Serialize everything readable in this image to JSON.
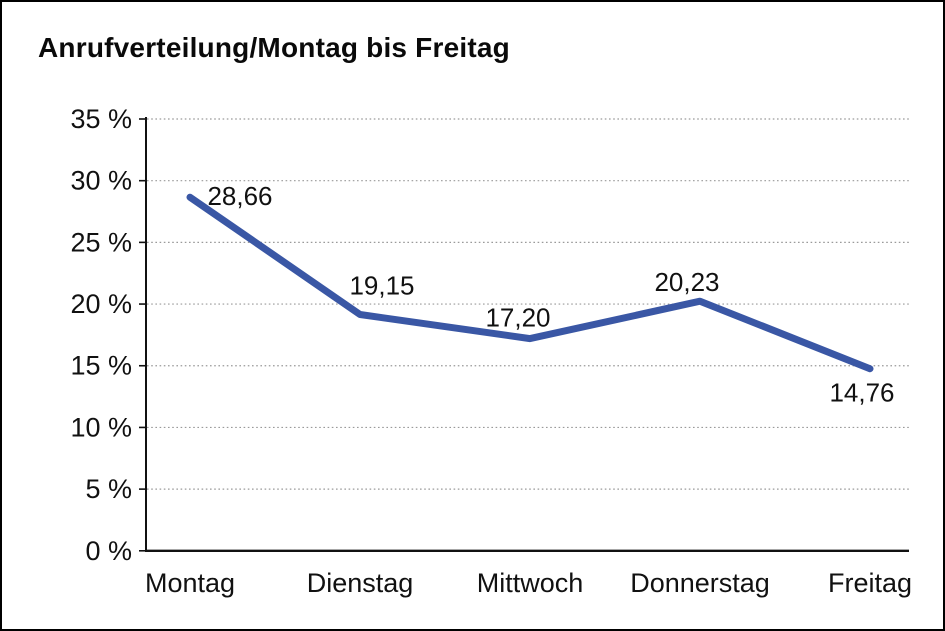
{
  "chart_data": {
    "type": "line",
    "title": "Anrufverteilung/Montag bis Freitag",
    "categories": [
      "Montag",
      "Dienstag",
      "Mittwoch",
      "Donnerstag",
      "Freitag"
    ],
    "series": [
      {
        "name": "Anrufverteilung",
        "values": [
          28.66,
          19.15,
          17.2,
          20.23,
          14.76
        ],
        "value_labels": [
          "28,66",
          "19,15",
          "17,20",
          "20,23",
          "14,76"
        ]
      }
    ],
    "xlabel": "",
    "ylabel": "",
    "ylim": [
      0,
      35
    ],
    "y_tick_step": 5,
    "y_tick_labels": [
      "0 %",
      "5 %",
      "10 %",
      "15 %",
      "20 %",
      "25 %",
      "30 %",
      "35 %"
    ],
    "grid": "dotted horizontal",
    "legend_position": "none",
    "colors": {
      "line": "#3A57A5",
      "text": "#111111",
      "gridline": "#9a9a9a",
      "axis": "#111111",
      "background": "#ffffff",
      "frame_border": "#000000"
    }
  }
}
